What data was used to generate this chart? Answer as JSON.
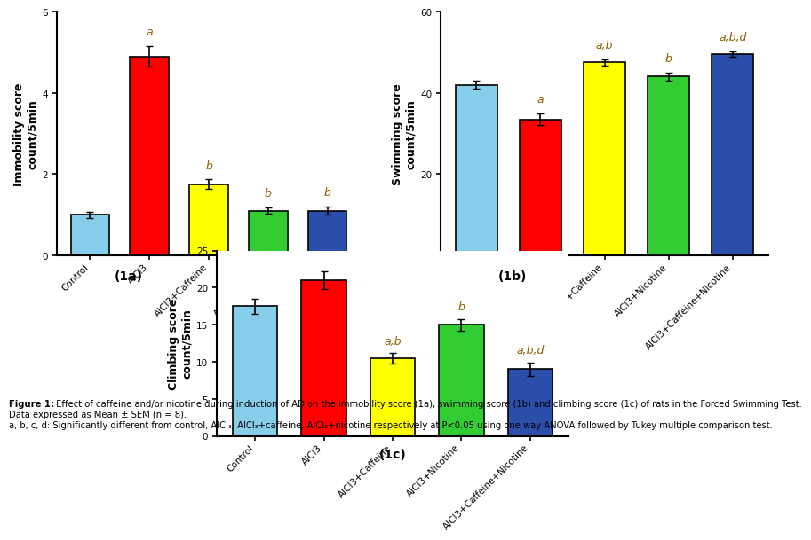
{
  "categories": [
    "Control",
    "AlCl3",
    "AlCl3+Caffeine",
    "AlCl3+Nicotine",
    "AlCl3+Caffeine+Nicotine"
  ],
  "bar_colors": [
    "#87CEEB",
    "#FF0000",
    "#FFFF00",
    "#32CD32",
    "#2B4EAA"
  ],
  "immobility": {
    "values": [
      1.0,
      4.9,
      1.75,
      1.1,
      1.1
    ],
    "errors": [
      0.08,
      0.25,
      0.12,
      0.08,
      0.1
    ],
    "ylabel": "Immobility score\ncount/5min",
    "ylim": [
      0,
      6
    ],
    "yticks": [
      0,
      2,
      4,
      6
    ],
    "labels": [
      "",
      "a",
      "b",
      "b",
      "b"
    ],
    "subtitle": "(1a)"
  },
  "swimming": {
    "values": [
      42.0,
      33.5,
      47.5,
      44.0,
      49.5
    ],
    "errors": [
      1.0,
      1.5,
      0.8,
      1.0,
      0.7
    ],
    "ylabel": "Swimming score\ncount/5min",
    "ylim": [
      0,
      60
    ],
    "yticks": [
      0,
      20,
      40,
      60
    ],
    "labels": [
      "",
      "a",
      "a,b",
      "b",
      "a,b,d"
    ],
    "subtitle": "(1b)"
  },
  "climbing": {
    "values": [
      17.5,
      21.0,
      10.5,
      15.0,
      9.0
    ],
    "errors": [
      1.0,
      1.2,
      0.7,
      0.8,
      0.9
    ],
    "ylabel": "Climbing score\ncount/5min",
    "ylim": [
      0,
      25
    ],
    "yticks": [
      0,
      5,
      10,
      15,
      20,
      25
    ],
    "labels": [
      "",
      "",
      "a,b",
      "b",
      "a,b,d"
    ],
    "subtitle": "(1c)"
  },
  "bar_edge_color": "#000000",
  "bar_linewidth": 1.2,
  "tick_label_size": 7.5,
  "axis_label_size": 9,
  "stat_label_size": 9,
  "subtitle_fontsize": 10,
  "caption_fontsize": 7.2,
  "caption_lines": [
    "Figure 1: Effect of caffeine and/or nicotine during induction of AD on the immobility score (1a), swimming score (1b) and climbing score (1c) of rats in the Forced Swimming Test.",
    "Data expressed as Mean ± SEM (n = 8).",
    "a, b, c, d: Significantly different from control, AlCl₃, AlCl₃+caffeine, AlCl₃+nicotine respectively at P<0.05 using one way ANOVA followed by Tukey multiple comparison test."
  ]
}
